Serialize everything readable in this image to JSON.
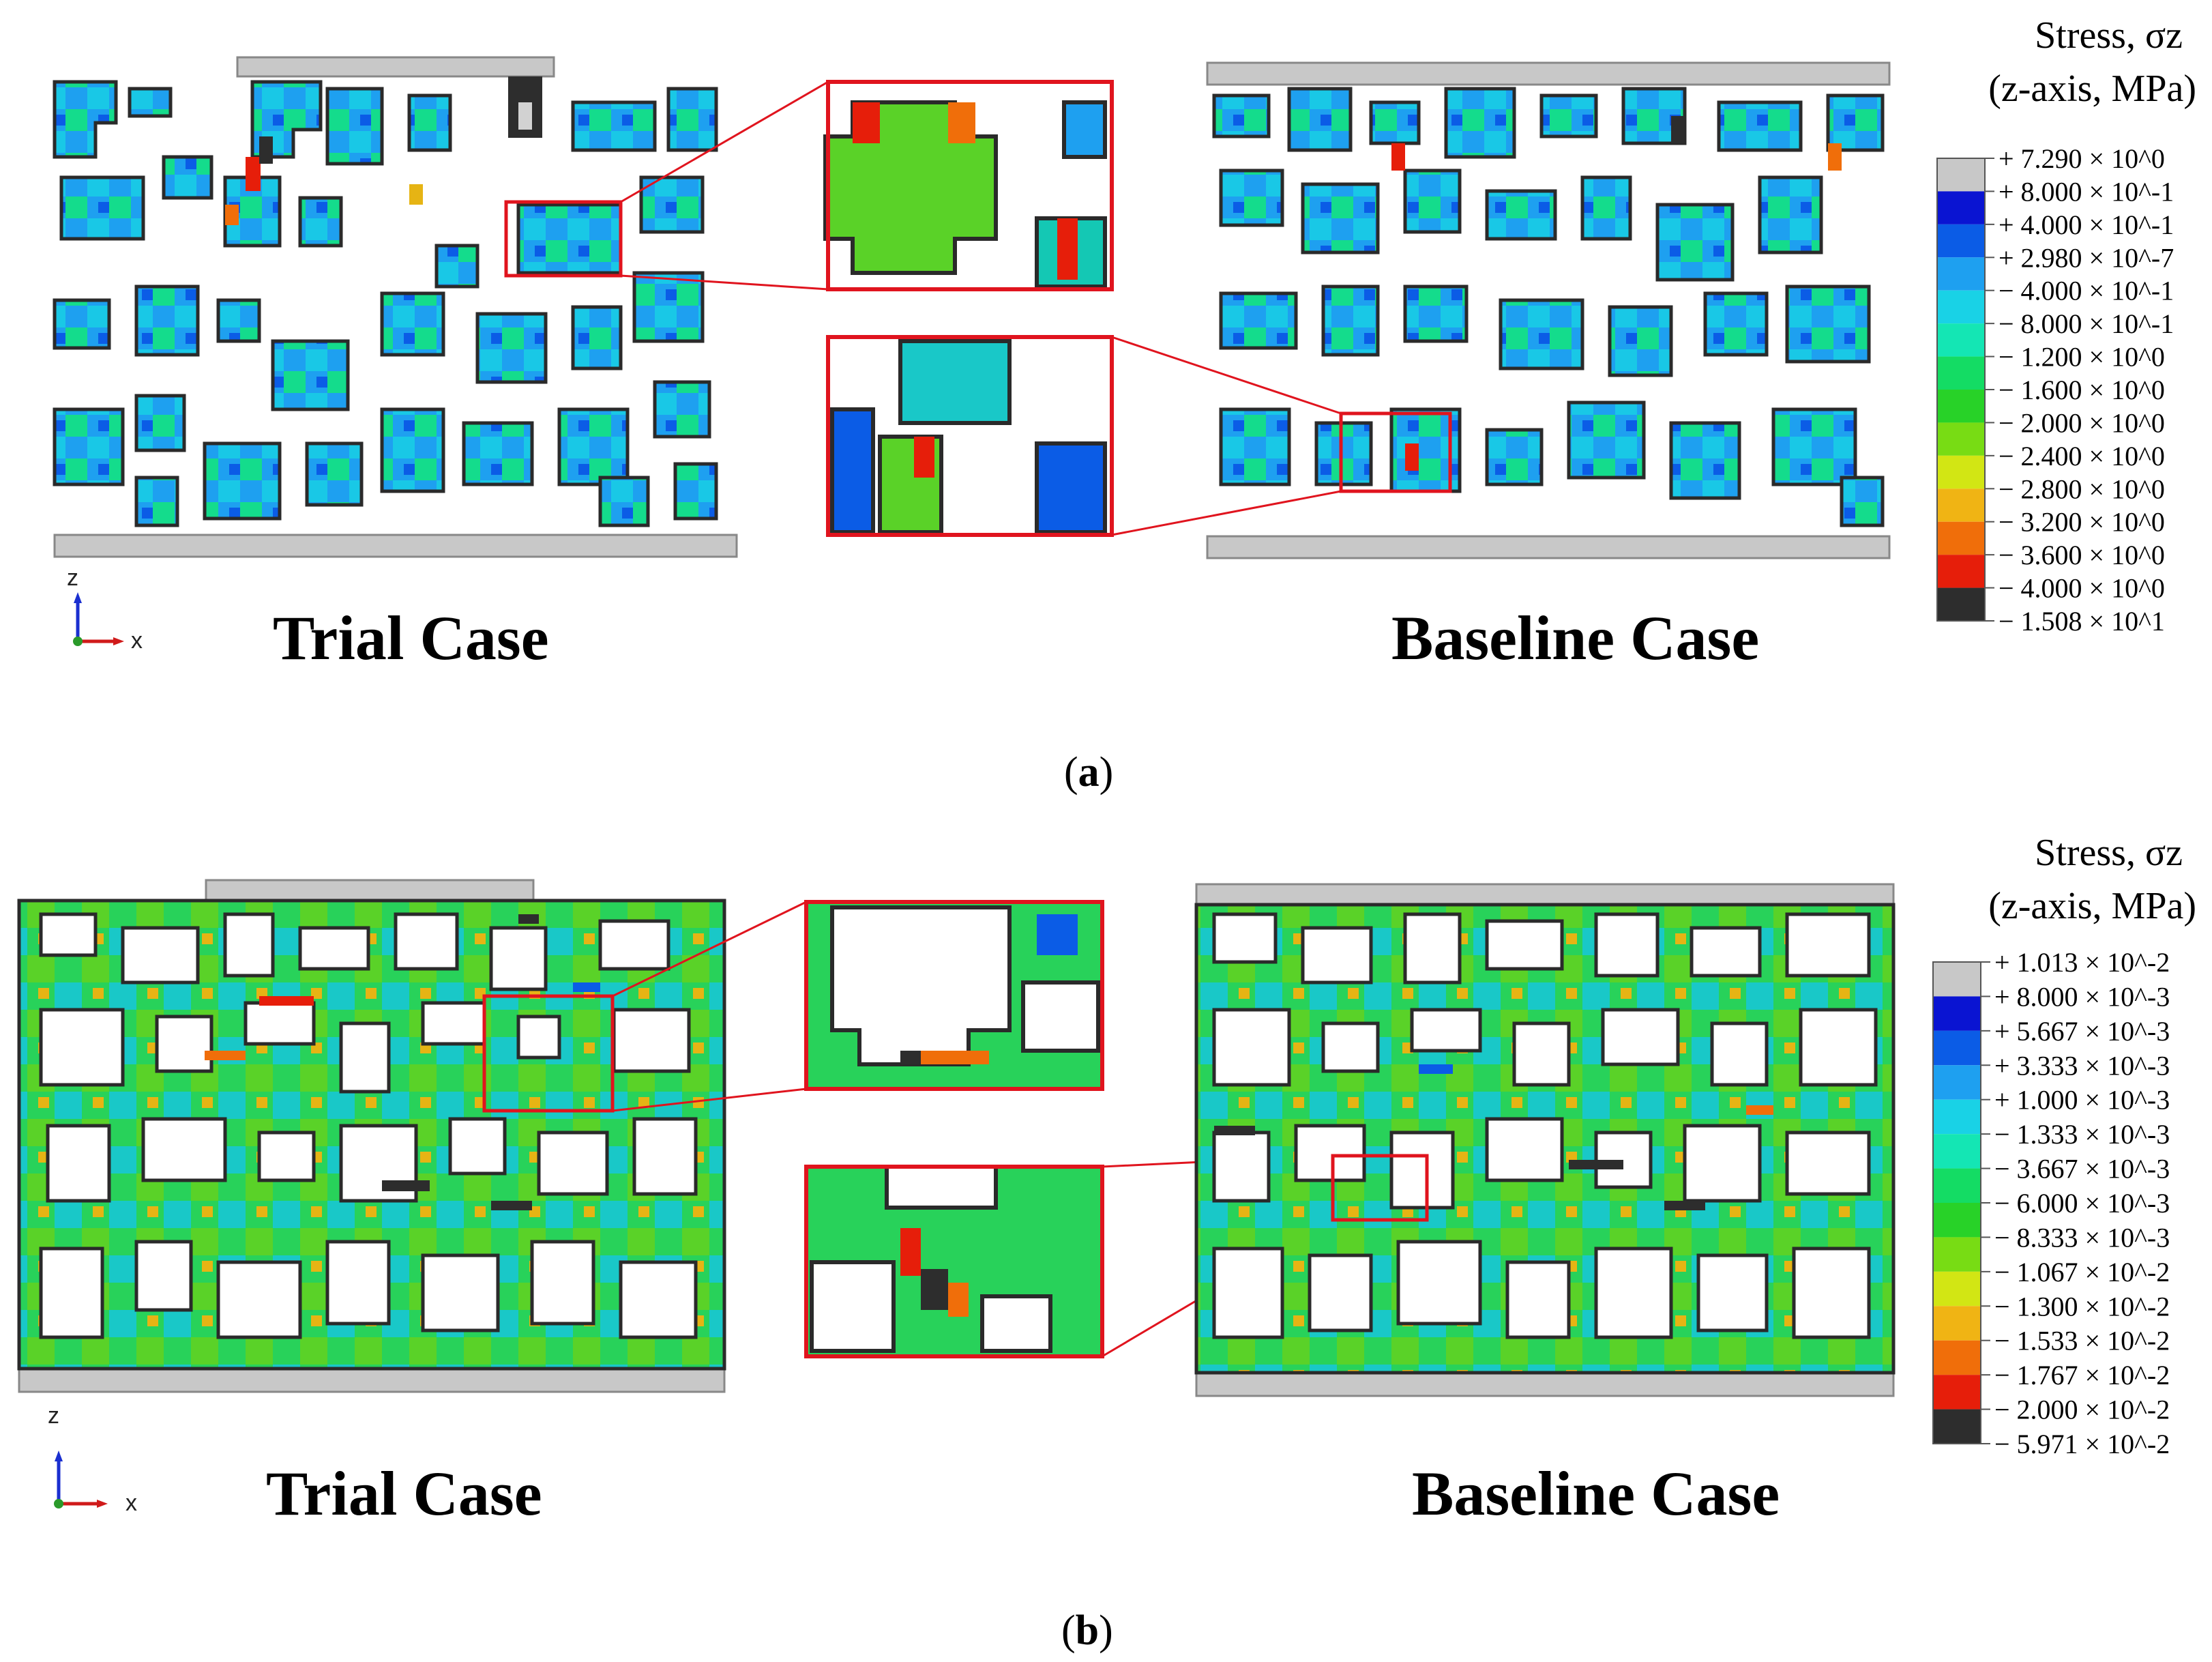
{
  "panels": [
    {
      "id": "a",
      "caption_open": "(",
      "caption_letter": "a",
      "caption_close": ")",
      "trial_label": "Trial Case",
      "baseline_label": "Baseline Case",
      "axis_z": "z",
      "axis_x": "x",
      "legend": {
        "title_line1": "Stress, σz",
        "title_line2": "(z-axis, MPa)",
        "entries": [
          {
            "label": "+ 7.290 × 10^0",
            "color": "#c8c8c8"
          },
          {
            "label": "+ 8.000 × 10^-1",
            "color": "#0a14d2"
          },
          {
            "label": "+ 4.000 × 10^-1",
            "color": "#0b5ce6"
          },
          {
            "label": "+ 2.980 × 10^-7",
            "color": "#1ea0f0"
          },
          {
            "label": "− 4.000 × 10^-1",
            "color": "#19d2e6"
          },
          {
            "label": "− 8.000 × 10^-1",
            "color": "#14e6b4"
          },
          {
            "label": "− 1.200 × 10^0",
            "color": "#14dc64"
          },
          {
            "label": "− 1.600 × 10^0",
            "color": "#28d228"
          },
          {
            "label": "− 2.000 × 10^0",
            "color": "#78dc14"
          },
          {
            "label": "− 2.400 × 10^0",
            "color": "#d2e614"
          },
          {
            "label": "− 2.800 × 10^0",
            "color": "#f0b414"
          },
          {
            "label": "− 3.200 × 10^0",
            "color": "#f06e0a"
          },
          {
            "label": "− 3.600 × 10^0",
            "color": "#e61e0a"
          },
          {
            "label": "− 4.000 × 10^0",
            "color": "#2d2d2d"
          },
          {
            "label": "− 1.508 × 10^1",
            "color": ""
          }
        ]
      }
    },
    {
      "id": "b",
      "caption_open": "(",
      "caption_letter": "b",
      "caption_close": ")",
      "trial_label": "Trial Case",
      "baseline_label": "Baseline Case",
      "axis_z": "z",
      "axis_x": "x",
      "legend": {
        "title_line1": "Stress, σz",
        "title_line2": "(z-axis, MPa)",
        "entries": [
          {
            "label": "+ 1.013 × 10^-2",
            "color": "#c8c8c8"
          },
          {
            "label": "+ 8.000 × 10^-3",
            "color": "#0a14d2"
          },
          {
            "label": "+ 5.667 × 10^-3",
            "color": "#0b5ce6"
          },
          {
            "label": "+ 3.333 × 10^-3",
            "color": "#1ea0f0"
          },
          {
            "label": "+ 1.000 × 10^-3",
            "color": "#19d2e6"
          },
          {
            "label": "− 1.333 × 10^-3",
            "color": "#14e6b4"
          },
          {
            "label": "− 3.667 × 10^-3",
            "color": "#14dc64"
          },
          {
            "label": "− 6.000 × 10^-3",
            "color": "#28d228"
          },
          {
            "label": "− 8.333 × 10^-3",
            "color": "#78dc14"
          },
          {
            "label": "− 1.067 × 10^-2",
            "color": "#d2e614"
          },
          {
            "label": "− 1.300 × 10^-2",
            "color": "#f0b414"
          },
          {
            "label": "− 1.533 × 10^-2",
            "color": "#f06e0a"
          },
          {
            "label": "− 1.767 × 10^-2",
            "color": "#e61e0a"
          },
          {
            "label": "− 2.000 × 10^-2",
            "color": "#2d2d2d"
          },
          {
            "label": "− 5.971 × 10^-2",
            "color": ""
          }
        ]
      }
    }
  ],
  "colors": {
    "inset_border": "#e0141e",
    "platen": "#c8c8c8",
    "particle_outline": "#2a2a2a",
    "axis_z": "#1a2fd0",
    "axis_x": "#d01a1a"
  }
}
